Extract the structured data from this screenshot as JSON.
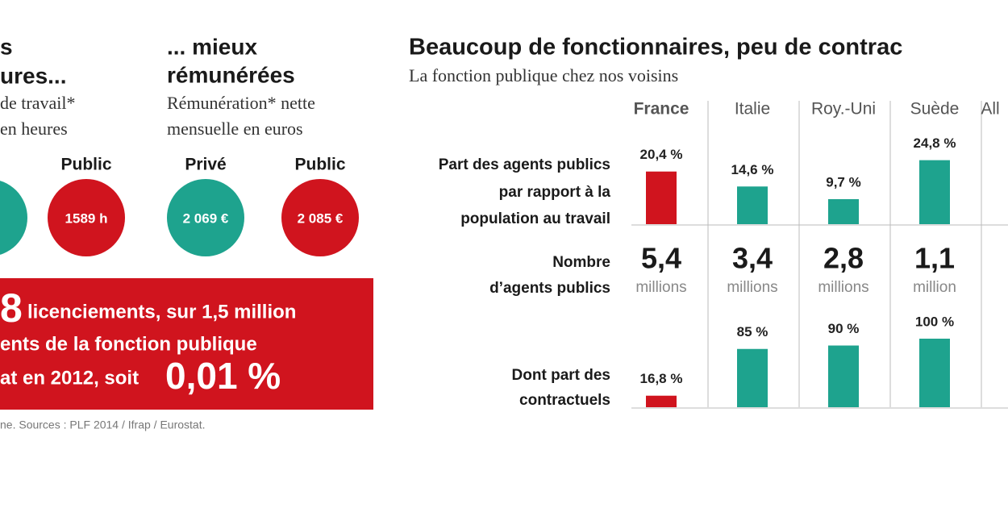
{
  "left": {
    "hours": {
      "title_lines": [
        "s",
        "ures..."
      ],
      "subtitle_lines": [
        "de travail*",
        "en heures"
      ],
      "public_label": "Public",
      "public_value": "1589 h"
    },
    "pay": {
      "title_lines": [
        "... mieux",
        "rémunérées"
      ],
      "subtitle_lines": [
        "Rémunération* nette",
        "mensuelle en euros"
      ],
      "private_label": "Privé",
      "private_value": "2 069 €",
      "public_label": "Public",
      "public_value": "2 085 €"
    },
    "callout": {
      "number": "8",
      "line1": "licenciements, sur 1,5 million",
      "line2": "ents de la fonction publique",
      "line3": "at en 2012, soit",
      "highlight": "0,01 %"
    },
    "footnote": "ne. Sources : PLF 2014 / Ifrap / Eurostat."
  },
  "right": {
    "title": "Beaucoup de fonctionnaires, peu de contrac",
    "subtitle": "La fonction publique chez nos voisins",
    "countries": [
      "France",
      "Italie",
      "Roy.-Uni",
      "Suède",
      "All"
    ],
    "share_label_lines": [
      "Part des agents publics",
      "par rapport à la",
      "population au travail"
    ],
    "share": {
      "values": [
        20.4,
        14.6,
        9.7,
        24.8
      ],
      "value_labels": [
        "20,4 %",
        "14,6 %",
        "9,7 %",
        "24,8 %"
      ],
      "colors": [
        "#d0141e",
        "#1ea38e",
        "#1ea38e",
        "#1ea38e"
      ]
    },
    "agents_label_lines": [
      "Nombre",
      "d’agents publics"
    ],
    "agents": {
      "values": [
        5.4,
        3.4,
        2.8,
        1.1
      ],
      "value_labels": [
        "5,4",
        "3,4",
        "2,8",
        "1,1"
      ],
      "units": [
        "millions",
        "millions",
        "millions",
        "million"
      ]
    },
    "contract_label_lines": [
      "Dont part des",
      "contractuels"
    ],
    "contract": {
      "values": [
        16.8,
        85,
        90,
        100
      ],
      "value_labels": [
        "16,8 %",
        "85 %",
        "90 %",
        "100 %"
      ],
      "colors": [
        "#d0141e",
        "#1ea38e",
        "#1ea38e",
        "#1ea38e"
      ]
    }
  }
}
